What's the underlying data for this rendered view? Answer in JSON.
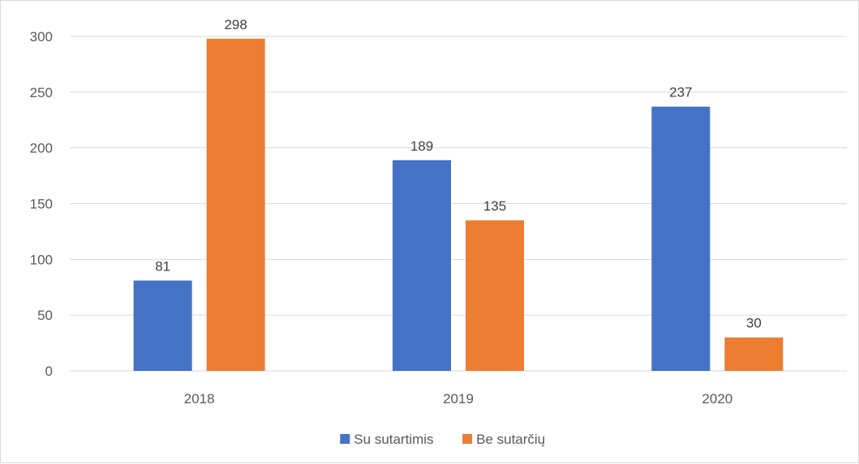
{
  "chart_data": {
    "type": "bar",
    "title": "",
    "xlabel": "",
    "ylabel": "",
    "categories": [
      "2018",
      "2019",
      "2020"
    ],
    "series": [
      {
        "name": "Su sutartimis",
        "color": "#4472C4",
        "values": [
          81,
          189,
          237
        ]
      },
      {
        "name": "Be sutarčių",
        "color": "#ED7D31",
        "values": [
          298,
          135,
          30
        ]
      }
    ],
    "ylim": [
      0,
      300
    ],
    "yticks": [
      0,
      50,
      100,
      150,
      200,
      250,
      300
    ],
    "grid": true,
    "data_labels": true,
    "legend_position": "bottom",
    "gridline_color": "#d9d9d9"
  }
}
